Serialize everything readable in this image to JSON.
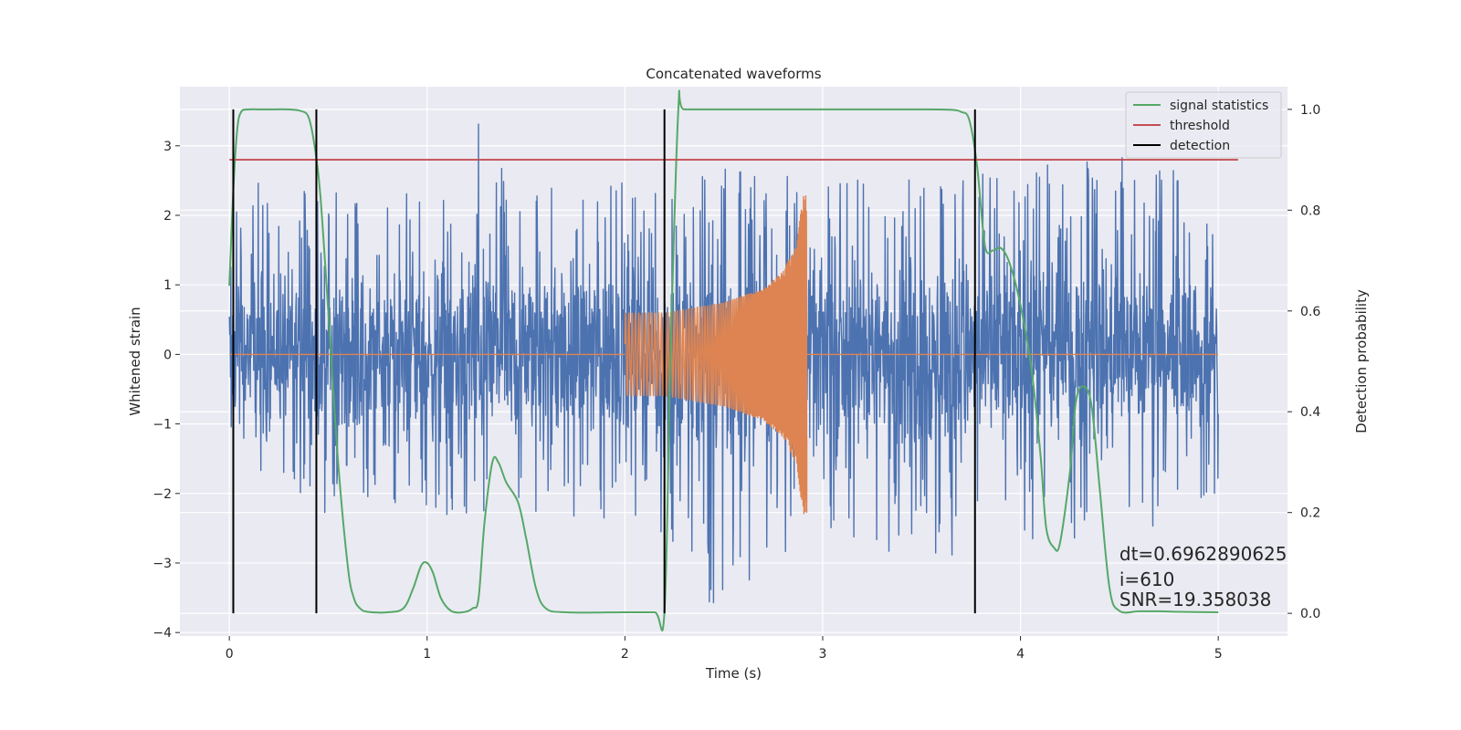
{
  "chart_data": {
    "type": "line",
    "title": "Concatenated waveforms",
    "xlabel": "Time (s)",
    "ylabel_left": "Whitened strain",
    "ylabel_right": "Detection probability",
    "xlim": [
      -0.25,
      5.35
    ],
    "ylim_left": [
      -4.05,
      3.85
    ],
    "ylim_right": [
      -0.045,
      1.045
    ],
    "x_ticks": [
      0,
      1,
      2,
      3,
      4,
      5
    ],
    "y_ticks_left": [
      -4,
      -3,
      -2,
      -1,
      0,
      1,
      2,
      3
    ],
    "y_ticks_right": [
      0.0,
      0.2,
      0.4,
      0.6,
      0.8,
      1.0
    ],
    "y_ticks_right_labels": [
      "0.0",
      "0.2",
      "0.4",
      "0.6",
      "0.8",
      "1.0"
    ],
    "grid": true,
    "legend_position": "top-right",
    "colors": {
      "strain": "#4c72b0",
      "injection": "#dd8452",
      "signal_statistics": "#55a868",
      "threshold": "#c44e52",
      "detection": "#000000",
      "background": "#eaeaf2",
      "grid": "#ffffff"
    },
    "series": [
      {
        "name": "",
        "axis": "left",
        "style": "noise",
        "x_range": [
          0,
          5
        ],
        "envelope": [
          {
            "x": 0.0,
            "lo": -1.3,
            "hi": 2.5
          },
          {
            "x": 0.5,
            "lo": -2.5,
            "hi": 2.4
          },
          {
            "x": 1.0,
            "lo": -2.3,
            "hi": 2.3
          },
          {
            "x": 1.25,
            "lo": -2.4,
            "hi": 3.55
          },
          {
            "x": 1.5,
            "lo": -2.3,
            "hi": 2.4
          },
          {
            "x": 2.0,
            "lo": -2.4,
            "hi": 2.6
          },
          {
            "x": 2.4,
            "lo": -3.7,
            "hi": 2.7
          },
          {
            "x": 3.0,
            "lo": -2.6,
            "hi": 2.5
          },
          {
            "x": 3.5,
            "lo": -3.0,
            "hi": 2.6
          },
          {
            "x": 4.0,
            "lo": -2.8,
            "hi": 2.7
          },
          {
            "x": 4.7,
            "lo": -2.6,
            "hi": 2.9
          },
          {
            "x": 5.0,
            "lo": -2.0,
            "hi": 1.9
          }
        ]
      },
      {
        "name": "",
        "axis": "left",
        "style": "chirp",
        "flat_ranges": [
          [
            0,
            2.0
          ],
          [
            2.92,
            5.0
          ]
        ],
        "chirp_range": [
          2.0,
          2.92
        ],
        "envelope": [
          {
            "x": 2.0,
            "amp": 0.6
          },
          {
            "x": 2.2,
            "amp": 0.6
          },
          {
            "x": 2.5,
            "amp": 0.75
          },
          {
            "x": 2.7,
            "amp": 0.95
          },
          {
            "x": 2.8,
            "amp": 1.2
          },
          {
            "x": 2.87,
            "amp": 1.6
          },
          {
            "x": 2.9,
            "amp": 2.3
          }
        ]
      },
      {
        "name": "signal statistics",
        "axis": "right",
        "x": [
          0.0,
          0.02,
          0.04,
          0.06,
          0.1,
          0.15,
          0.2,
          0.3,
          0.36,
          0.4,
          0.43,
          0.46,
          0.5,
          0.55,
          0.6,
          0.63,
          0.66,
          0.7,
          0.8,
          0.88,
          0.93,
          0.97,
          1.0,
          1.03,
          1.07,
          1.12,
          1.18,
          1.23,
          1.26,
          1.29,
          1.33,
          1.36,
          1.4,
          1.46,
          1.5,
          1.55,
          1.6,
          1.7,
          2.0,
          2.15,
          2.2,
          2.23,
          2.27,
          2.3,
          2.5,
          3.0,
          3.5,
          3.65,
          3.7,
          3.74,
          3.78,
          3.82,
          3.86,
          3.9,
          3.94,
          3.99,
          4.05,
          4.1,
          4.13,
          4.17,
          4.2,
          4.25,
          4.28,
          4.32,
          4.36,
          4.4,
          4.45,
          4.5,
          4.6,
          4.7,
          4.8,
          5.0
        ],
        "y": [
          0.65,
          0.84,
          0.96,
          0.995,
          1.0,
          1.0,
          1.0,
          1.0,
          0.997,
          0.985,
          0.93,
          0.83,
          0.6,
          0.3,
          0.09,
          0.03,
          0.01,
          0.003,
          0.002,
          0.01,
          0.05,
          0.095,
          0.1,
          0.08,
          0.03,
          0.005,
          0.002,
          0.01,
          0.03,
          0.18,
          0.3,
          0.3,
          0.26,
          0.22,
          0.15,
          0.05,
          0.01,
          0.002,
          0.002,
          0.002,
          0.003,
          0.5,
          1.0,
          1.0,
          1.0,
          1.0,
          1.0,
          0.999,
          0.995,
          0.98,
          0.89,
          0.73,
          0.72,
          0.725,
          0.7,
          0.63,
          0.5,
          0.32,
          0.17,
          0.13,
          0.14,
          0.28,
          0.42,
          0.45,
          0.41,
          0.25,
          0.05,
          0.005,
          0.004,
          0.004,
          0.003,
          0.002
        ]
      },
      {
        "name": "threshold",
        "axis": "right",
        "x": [
          0.0,
          5.1
        ],
        "y": [
          0.9,
          0.9
        ]
      },
      {
        "name": "detection",
        "axis": "right",
        "style": "vlines",
        "x": [
          0.02,
          0.44,
          2.2,
          3.77
        ],
        "y_range": [
          0.0,
          1.0
        ]
      }
    ],
    "annotations": [
      {
        "text": "dt=0.6962890625",
        "x": 4.5,
        "y": -2.96
      },
      {
        "text": " i=610",
        "x": 4.5,
        "y": -3.33
      },
      {
        "text": "SNR=19.358038",
        "x": 4.5,
        "y": -3.62
      }
    ]
  }
}
